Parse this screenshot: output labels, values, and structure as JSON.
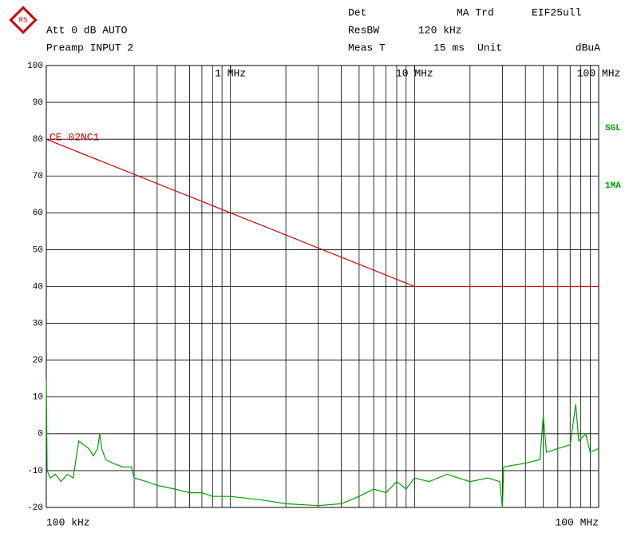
{
  "chart_data": {
    "type": "line",
    "x_scale": "log",
    "header": {
      "att": "Att 0 dB AUTO",
      "preamp": "Preamp INPUT 2",
      "det": "Det",
      "det_value": "MA Trd",
      "file": "EIF25ull",
      "resbw": "ResBW",
      "resbw_value": "120 kHz",
      "meas": "Meas T",
      "meas_value": "15 ms",
      "unit": "Unit",
      "unit_value": "dBuA",
      "sgl": "SGL",
      "trace_mode": "1MA"
    },
    "xlim": [
      100000,
      100000000
    ],
    "x_start_label": "100 kHz",
    "x_end_label": "100 MHz",
    "xticks": [
      {
        "value": 1000000,
        "label": "1 MHz"
      },
      {
        "value": 10000000,
        "label": "10 MHz"
      },
      {
        "value": 100000000,
        "label": "100 MHz"
      }
    ],
    "xgrid": [
      300000,
      400000,
      500000,
      600000,
      700000,
      800000,
      900000,
      1000000,
      2000000,
      3000000,
      4000000,
      5000000,
      6000000,
      7000000,
      8000000,
      9000000,
      10000000,
      20000000,
      30000000,
      40000000,
      50000000,
      60000000,
      70000000,
      80000000,
      90000000
    ],
    "ylim": [
      -20,
      100
    ],
    "yticks": [
      -20,
      -10,
      0,
      10,
      20,
      30,
      40,
      50,
      60,
      70,
      80,
      90,
      100
    ],
    "grid": true,
    "series": [
      {
        "name": "CE 02NC1",
        "color": "#d00000",
        "x": [
          100000,
          10000000,
          100000000
        ],
        "values": [
          80,
          40,
          40
        ]
      },
      {
        "color": "#00a000",
        "x": [
          100000,
          101000,
          105000,
          112000,
          120000,
          130000,
          140000,
          150000,
          160000,
          170000,
          180000,
          190000,
          195000,
          200000,
          210000,
          230000,
          260000,
          290000,
          300000,
          350000,
          400000,
          500000,
          600000,
          700000,
          800000,
          1000000,
          1500000,
          2000000,
          3000000,
          4000000,
          5000000,
          6000000,
          7000000,
          8000000,
          9000000,
          10000000,
          12000000,
          15000000,
          20000000,
          25000000,
          29000000,
          30000000,
          30500000,
          40000000,
          48000000,
          50000000,
          52000000,
          60000000,
          70000000,
          75000000,
          78000000,
          85000000,
          90000000,
          100000000
        ],
        "values": [
          15,
          -10,
          -12,
          -11,
          -13,
          -11,
          -12,
          -2,
          -3,
          -4,
          -6,
          -4,
          0,
          -4,
          -7,
          -8,
          -9,
          -9,
          -12,
          -13,
          -14,
          -15,
          -16,
          -16,
          -17,
          -17,
          -18,
          -19,
          -19.5,
          -19,
          -17,
          -15,
          -16,
          -13,
          -15,
          -12,
          -13,
          -11,
          -13,
          -12,
          -13,
          -20,
          -9,
          -8,
          -7,
          5,
          -5,
          -4,
          -3,
          8,
          -2,
          0,
          -5,
          -4
        ]
      }
    ]
  }
}
